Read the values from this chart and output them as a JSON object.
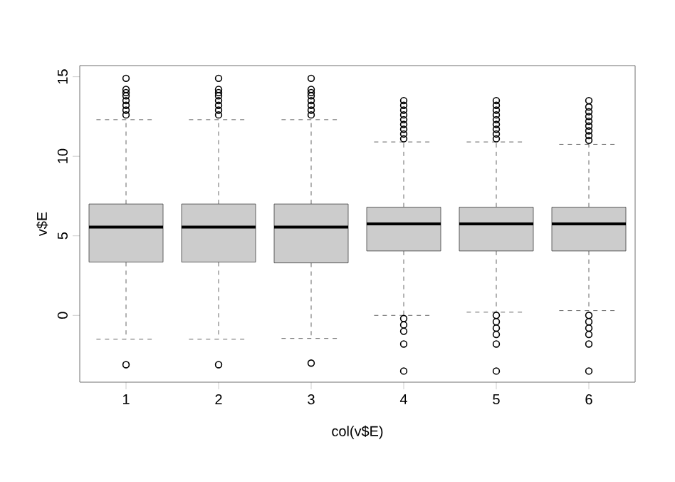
{
  "chart_data": {
    "type": "box",
    "xlabel": "col(v$E)",
    "ylabel": "v$E",
    "categories": [
      "1",
      "2",
      "3",
      "4",
      "5",
      "6"
    ],
    "color": "#cccccc",
    "marker": "circle",
    "ylim": [
      -4.2,
      15.7
    ],
    "yticks": [
      0,
      5,
      10,
      15
    ],
    "boxes": [
      {
        "low": -1.5,
        "q1": 3.35,
        "median": 5.55,
        "q3": 7.0,
        "high": 12.3,
        "outliers": [
          12.6,
          12.9,
          13.2,
          13.5,
          13.8,
          14.0,
          14.2,
          14.9,
          -3.1
        ]
      },
      {
        "low": -1.5,
        "q1": 3.35,
        "median": 5.55,
        "q3": 7.0,
        "high": 12.3,
        "outliers": [
          12.6,
          12.9,
          13.2,
          13.5,
          13.8,
          14.0,
          14.2,
          14.9,
          -3.1
        ]
      },
      {
        "low": -1.45,
        "q1": 3.3,
        "median": 5.55,
        "q3": 7.0,
        "high": 12.3,
        "outliers": [
          12.6,
          12.9,
          13.2,
          13.5,
          13.8,
          14.0,
          14.2,
          14.9,
          -3.0
        ]
      },
      {
        "low": 0.0,
        "q1": 4.05,
        "median": 5.75,
        "q3": 6.8,
        "high": 10.9,
        "outliers": [
          11.1,
          11.4,
          11.7,
          12.0,
          12.3,
          12.6,
          12.9,
          13.2,
          13.5,
          -0.2,
          -0.6,
          -1.0,
          -1.8,
          -3.5
        ]
      },
      {
        "low": 0.2,
        "q1": 4.05,
        "median": 5.75,
        "q3": 6.8,
        "high": 10.9,
        "outliers": [
          11.1,
          11.4,
          11.7,
          12.0,
          12.3,
          12.6,
          12.9,
          13.2,
          13.5,
          0.0,
          -0.4,
          -0.8,
          -1.2,
          -1.8,
          -3.5
        ]
      },
      {
        "low": 0.3,
        "q1": 4.05,
        "median": 5.75,
        "q3": 6.8,
        "high": 10.75,
        "outliers": [
          11.0,
          11.3,
          11.6,
          11.9,
          12.2,
          12.5,
          12.8,
          13.1,
          13.5,
          0.0,
          -0.4,
          -0.8,
          -1.2,
          -1.8,
          -3.5
        ]
      }
    ]
  }
}
